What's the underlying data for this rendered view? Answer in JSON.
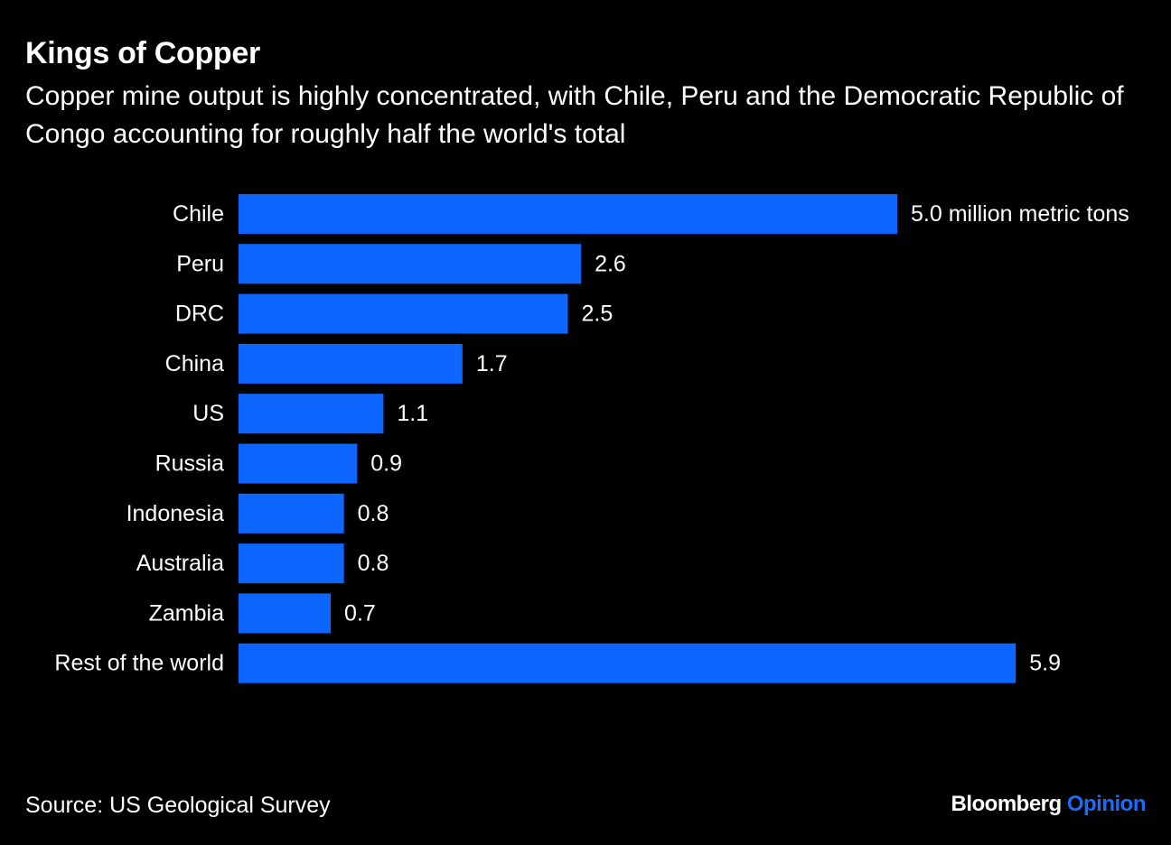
{
  "title": "Kings of Copper",
  "subtitle": "Copper mine output is highly concentrated, with Chile, Peru and the Democratic Republic of Congo accounting for roughly half the world's total",
  "source": "Source: US Geological Survey",
  "brand": {
    "name": "Bloomberg",
    "section": "Opinion"
  },
  "colors": {
    "background": "#000000",
    "bar": "#0d66ff",
    "text": "#ffffff",
    "brand_accent": "#1a6cff"
  },
  "chart_data": {
    "type": "bar",
    "orientation": "horizontal",
    "categories": [
      "Chile",
      "Peru",
      "DRC",
      "China",
      "US",
      "Russia",
      "Indonesia",
      "Australia",
      "Zambia",
      "Rest of the world"
    ],
    "values": [
      5.0,
      2.6,
      2.5,
      1.7,
      1.1,
      0.9,
      0.8,
      0.8,
      0.7,
      5.9
    ],
    "data_labels": [
      "5.0 million metric tons",
      "2.6",
      "2.5",
      "1.7",
      "1.1",
      "0.9",
      "0.8",
      "0.8",
      "0.7",
      "5.9"
    ],
    "xlim": [
      0,
      5.9
    ],
    "grid": false,
    "legend": "none"
  }
}
